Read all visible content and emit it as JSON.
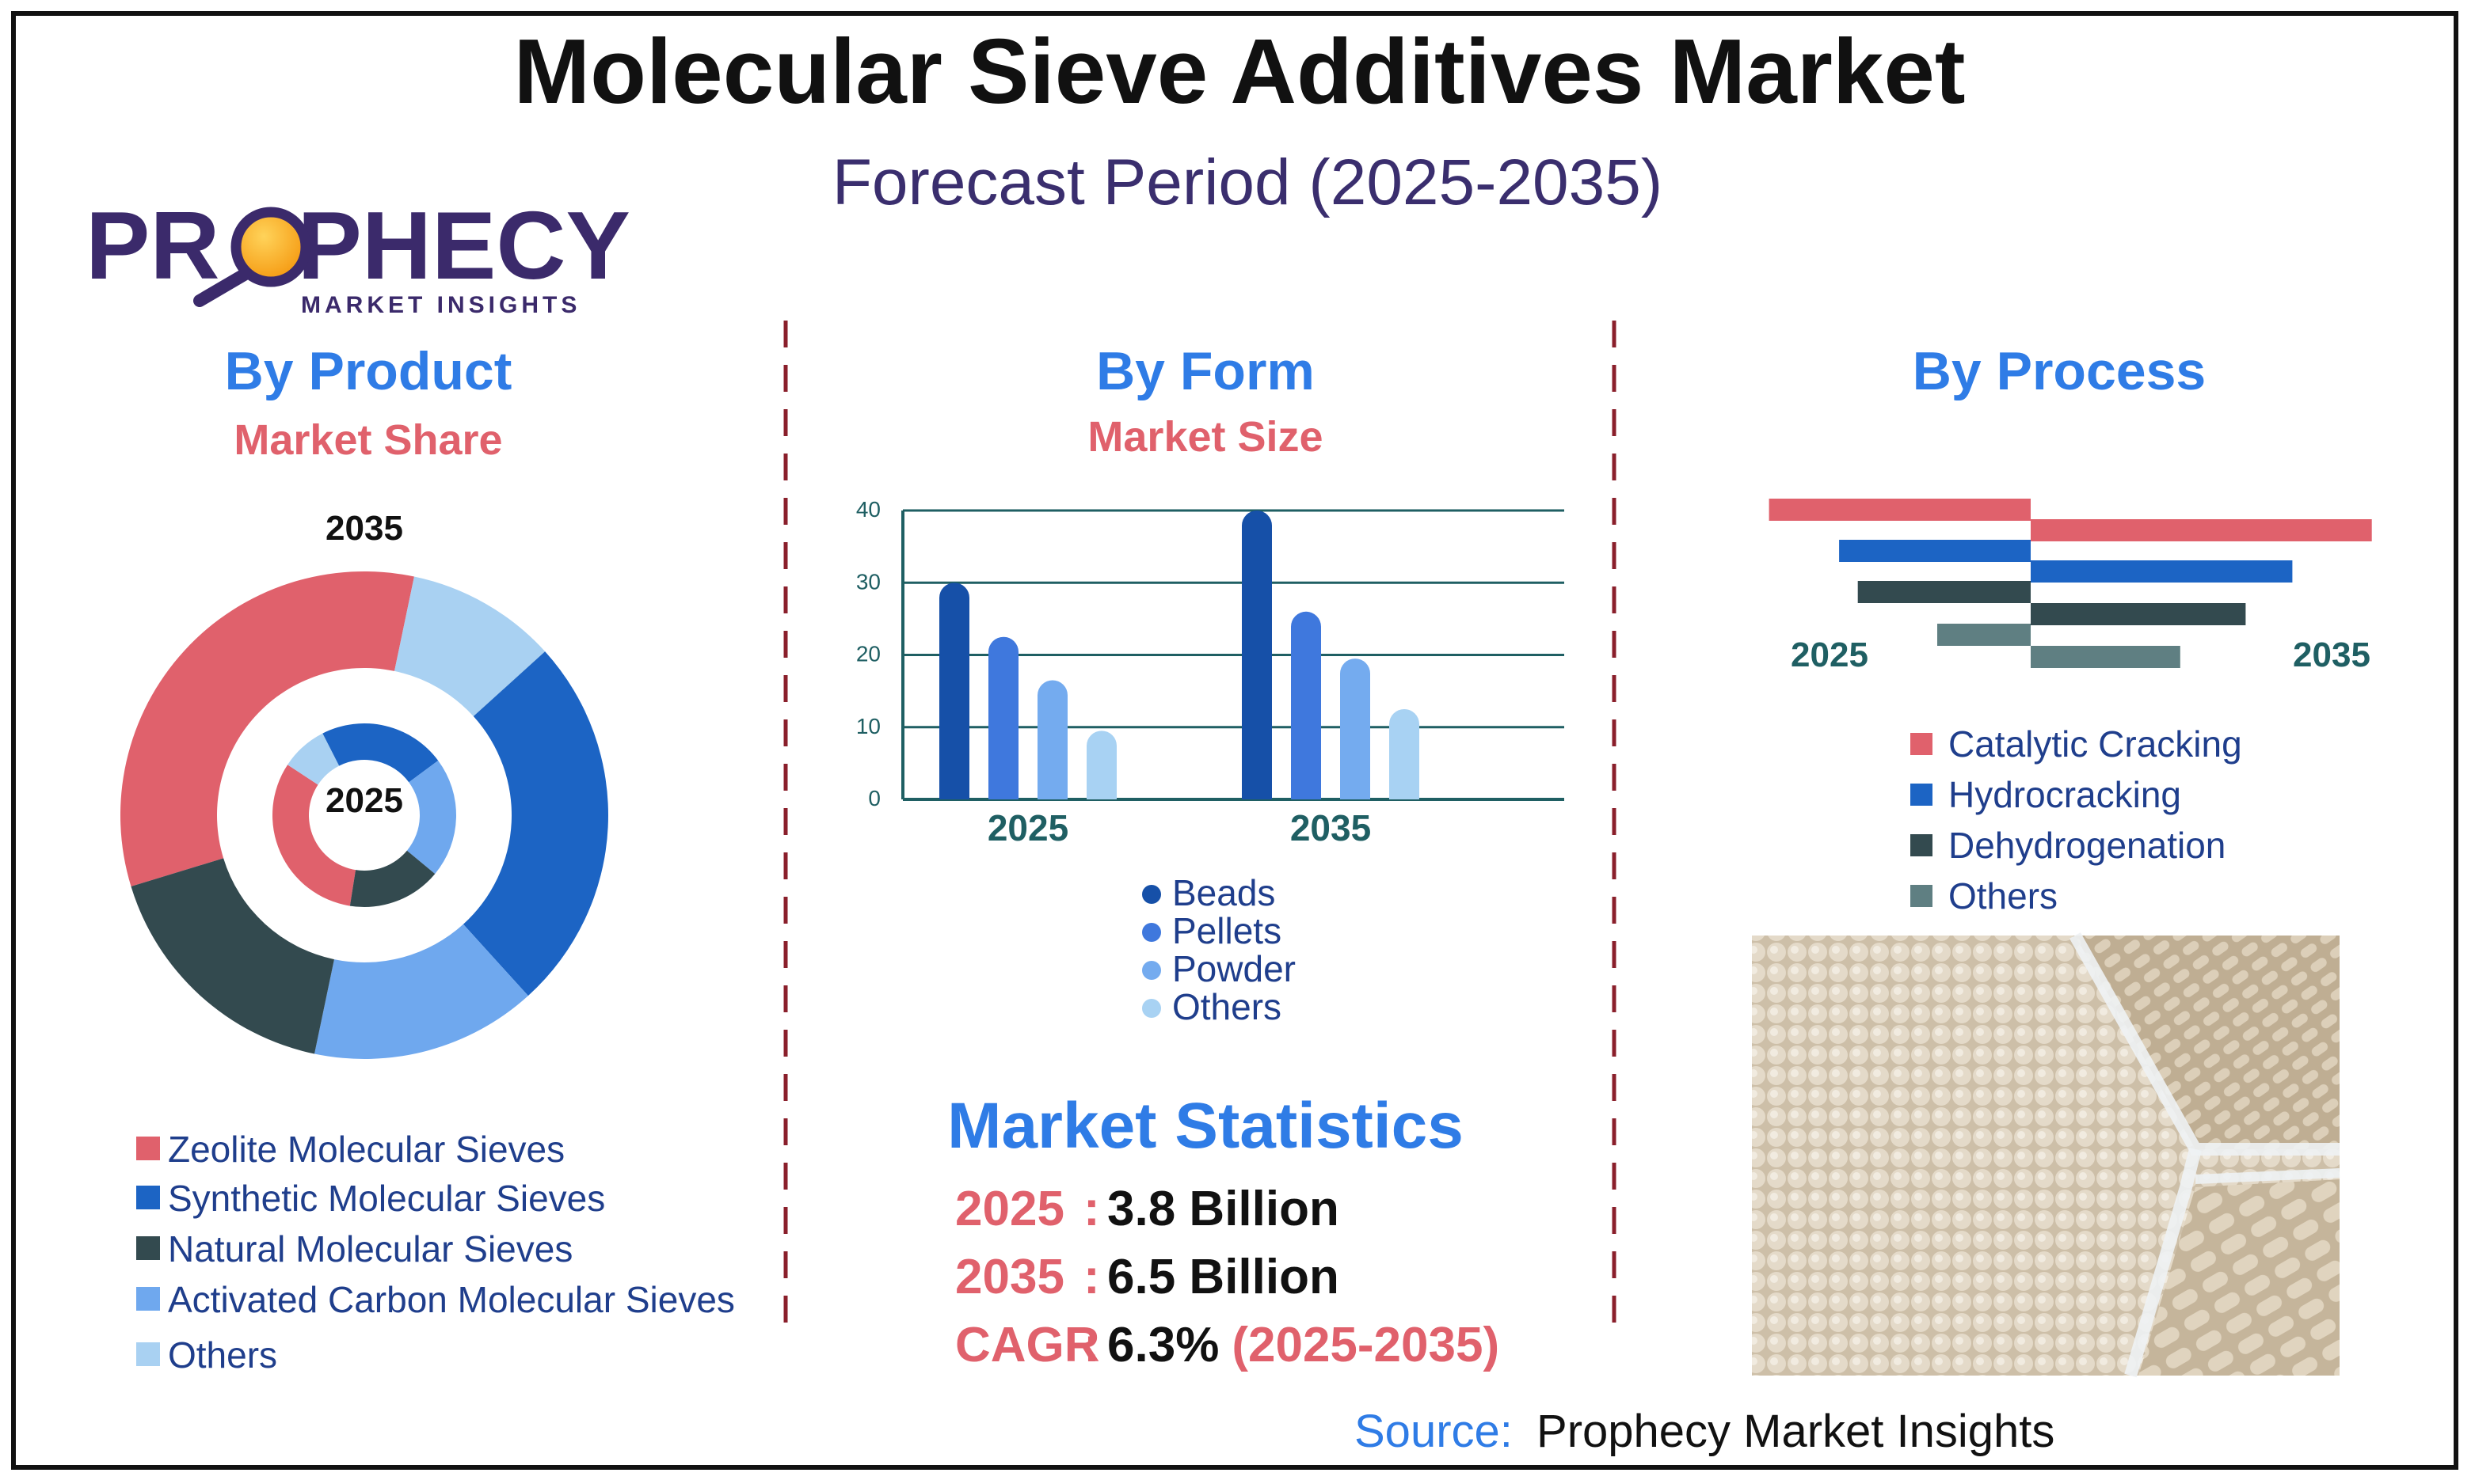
{
  "header": {
    "title": "Molecular Sieve Additives Market",
    "subtitle": "Forecast Period (2025-2035)"
  },
  "logo": {
    "text_pre": "PR",
    "text_post": "PHECY",
    "tagline": "MARKET INSIGHTS"
  },
  "colors": {
    "title": "#111111",
    "subtitle": "#3a2e6e",
    "section_heading": "#2f7ce6",
    "section_sub": "#e0616c",
    "divider": "#8a1f2b",
    "legend_text": "#1f3e8c",
    "axis_teal": "#1f5f63"
  },
  "sections": {
    "product": {
      "heading": "By Product",
      "subheading": "Market Share"
    },
    "form": {
      "heading": "By Form",
      "subheading": "Market Size"
    },
    "process": {
      "heading": "By Process"
    }
  },
  "chart_data": [
    {
      "type": "pie",
      "subtype": "donut-nested",
      "outer_label": "2035",
      "inner_label": "2025",
      "categories": [
        "Zeolite Molecular Sieves",
        "Synthetic Molecular Sieves",
        "Natural Molecular Sieves",
        "Activated Carbon Molecular Sieves",
        "Others"
      ],
      "colors": [
        "#e0616c",
        "#1c64c4",
        "#334a4f",
        "#6fa8ee",
        "#a9d1f2"
      ],
      "series": [
        {
          "name": "2035",
          "values": [
            33,
            25,
            17,
            15,
            10
          ],
          "start_deg": 253,
          "order": [
            0,
            4,
            1,
            3,
            2
          ]
        },
        {
          "name": "2025",
          "values": [
            27,
            19,
            14,
            18,
            7
          ],
          "start_deg": 189,
          "order": [
            0,
            4,
            1,
            3,
            2
          ]
        }
      ],
      "legend_position": "bottom"
    },
    {
      "type": "bar",
      "categories": [
        "2025",
        "2035"
      ],
      "series": [
        {
          "name": "Beads",
          "values": [
            30,
            40
          ],
          "color": "#1650a8"
        },
        {
          "name": "Pellets",
          "values": [
            22.5,
            26
          ],
          "color": "#3f78dd"
        },
        {
          "name": "Powder",
          "values": [
            16.5,
            19.5
          ],
          "color": "#74abef"
        },
        {
          "name": "Others",
          "values": [
            9.5,
            12.5
          ],
          "color": "#a8d2f3"
        }
      ],
      "yticks": [
        0,
        10,
        20,
        30,
        40
      ],
      "ylim": [
        0,
        40
      ],
      "grid": true,
      "legend_position": "bottom"
    },
    {
      "type": "bar",
      "subtype": "butterfly-horizontal",
      "left_label": "2025",
      "right_label": "2035",
      "categories": [
        "Catalytic Cracking",
        "Hydrocracking",
        "Dehydrogenation",
        "Others"
      ],
      "colors": [
        "#e0616c",
        "#1c64c4",
        "#334a4f",
        "#5f7f82"
      ],
      "series": [
        {
          "name": "2025",
          "values": [
            28,
            20.5,
            18.5,
            10
          ]
        },
        {
          "name": "2035",
          "values": [
            36.5,
            28,
            23,
            16
          ]
        }
      ],
      "legend_position": "bottom"
    }
  ],
  "stats": {
    "heading": "Market Statistics",
    "rows": [
      {
        "label": "2025",
        "sep": ":",
        "value": "3.8 Billion",
        "extra": ""
      },
      {
        "label": "2035",
        "sep": ":",
        "value": "6.5 Billion",
        "extra": ""
      },
      {
        "label": "CAGR",
        "sep": ":",
        "value": "6.3%",
        "extra": "(2025-2035)"
      }
    ]
  },
  "photo": {
    "icon": "molecular-sieve-beads-photo"
  },
  "source": {
    "label": "Source:",
    "value": "Prophecy Market Insights"
  }
}
